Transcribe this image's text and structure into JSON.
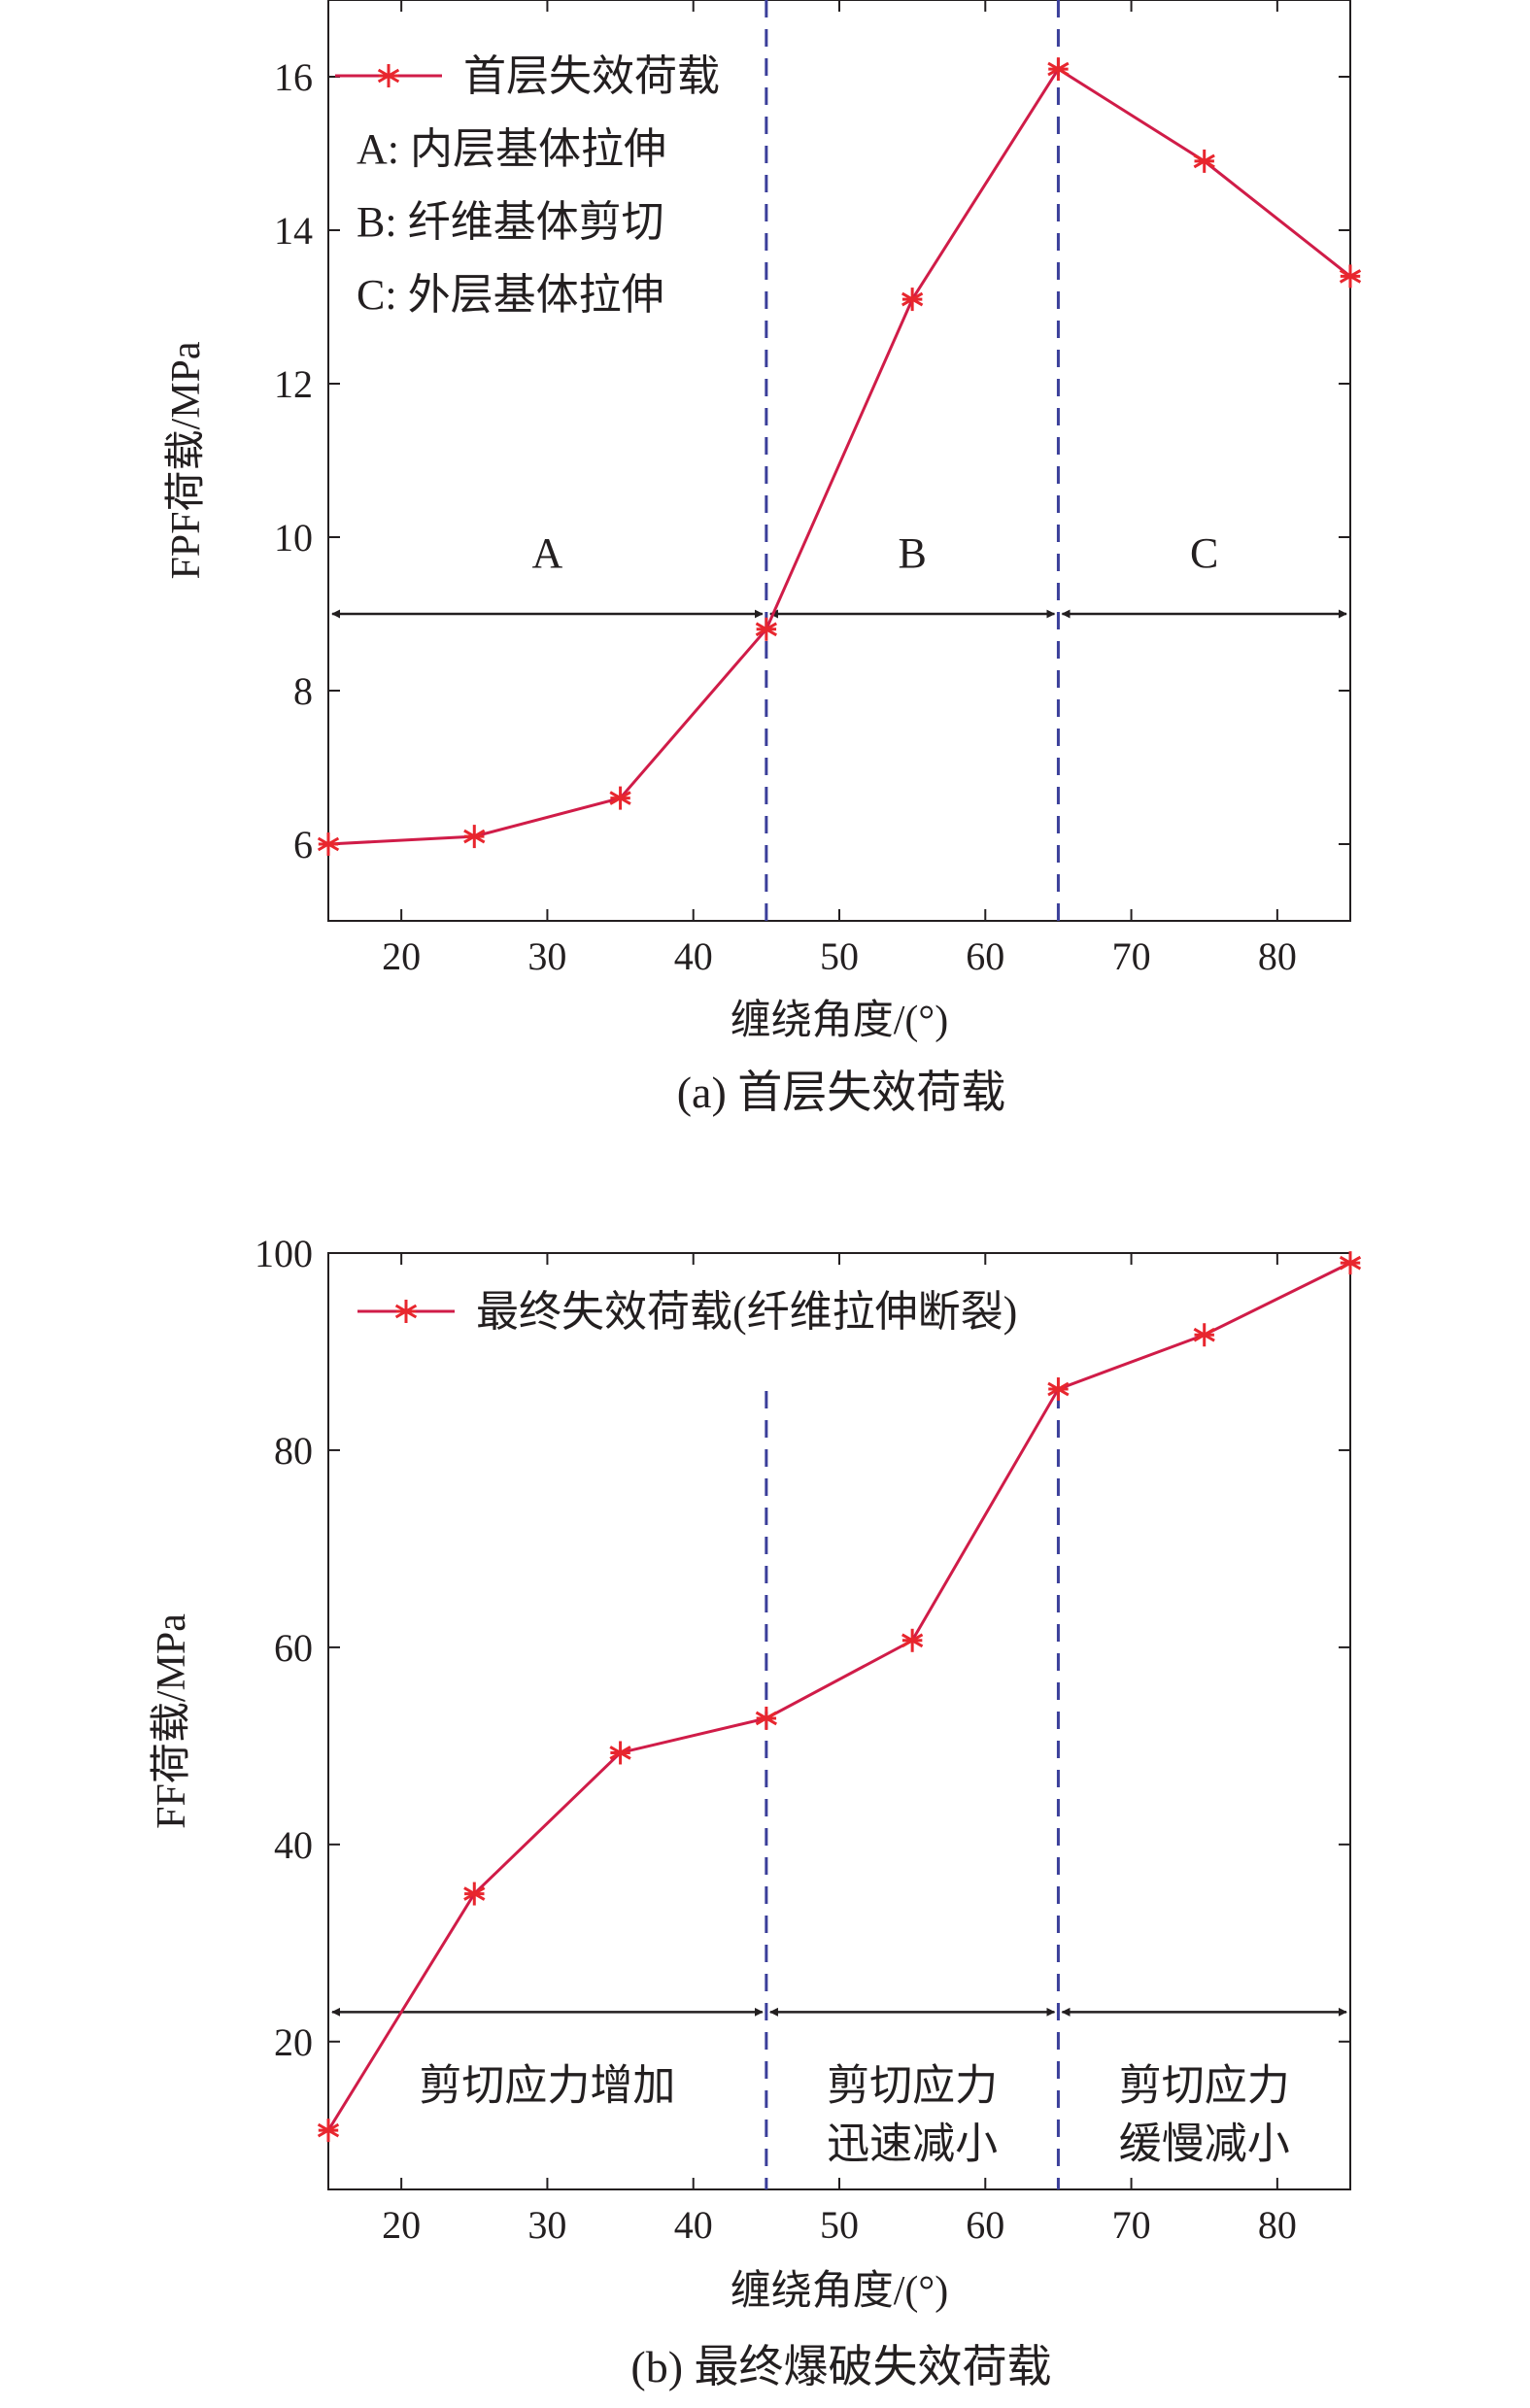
{
  "chart_data": [
    {
      "type": "line",
      "caption": "(a) 首层失效荷载",
      "xlabel": "缠绕角度/(°)",
      "ylabel": "FPF荷载/MPa",
      "xlim": [
        15,
        85
      ],
      "ylim": [
        5,
        17
      ],
      "xticks": [
        20,
        30,
        40,
        50,
        60,
        70,
        80
      ],
      "yticks": [
        6,
        8,
        10,
        12,
        14,
        16
      ],
      "grid": false,
      "legend": {
        "placement": "top-left",
        "entry": "首层失效荷载"
      },
      "annotations": [
        "A: 内层基体拉伸",
        "B: 纤维基体剪切",
        "C: 外层基体拉伸"
      ],
      "vlines": [
        45,
        65
      ],
      "regions": [
        {
          "label": "A",
          "from": 15,
          "to": 45
        },
        {
          "label": "B",
          "from": 45,
          "to": 65
        },
        {
          "label": "C",
          "from": 65,
          "to": 85
        }
      ],
      "region_arrow_y": 9,
      "series": [
        {
          "name": "首层失效荷载",
          "x": [
            15,
            25,
            35,
            45,
            55,
            65,
            75,
            85
          ],
          "values": [
            6.0,
            6.1,
            6.6,
            8.8,
            13.1,
            16.1,
            14.9,
            13.4
          ]
        }
      ]
    },
    {
      "type": "line",
      "caption": "(b) 最终爆破失效荷载",
      "xlabel": "缠绕角度/(°)",
      "ylabel": "FF荷载/MPa",
      "xlim": [
        15,
        85
      ],
      "ylim": [
        5,
        100
      ],
      "xticks": [
        20,
        30,
        40,
        50,
        60,
        70,
        80
      ],
      "yticks": [
        20,
        40,
        60,
        80,
        100
      ],
      "grid": false,
      "legend": {
        "placement": "top-left",
        "entry": "最终失效荷载(纤维拉伸断裂)"
      },
      "annotations": [],
      "vlines": [
        45,
        65
      ],
      "regions": [
        {
          "label": "剪切应力增加",
          "from": 15,
          "to": 45
        },
        {
          "label": "剪切应力\n迅速减小",
          "from": 45,
          "to": 65
        },
        {
          "label": "剪切应力\n缓慢减小",
          "from": 65,
          "to": 85
        }
      ],
      "region_arrow_y": 23,
      "series": [
        {
          "name": "最终失效荷载(纤维拉伸断裂)",
          "x": [
            15,
            25,
            35,
            45,
            55,
            65,
            75,
            85
          ],
          "values": [
            11,
            35,
            49.3,
            52.8,
            60.7,
            86.2,
            91.7,
            99
          ]
        }
      ]
    }
  ],
  "colors": {
    "line": "#d01c48",
    "marker": "#e8262e",
    "axis": "#231f20",
    "divider": "#3b3f9a",
    "arrow": "#231f20"
  }
}
